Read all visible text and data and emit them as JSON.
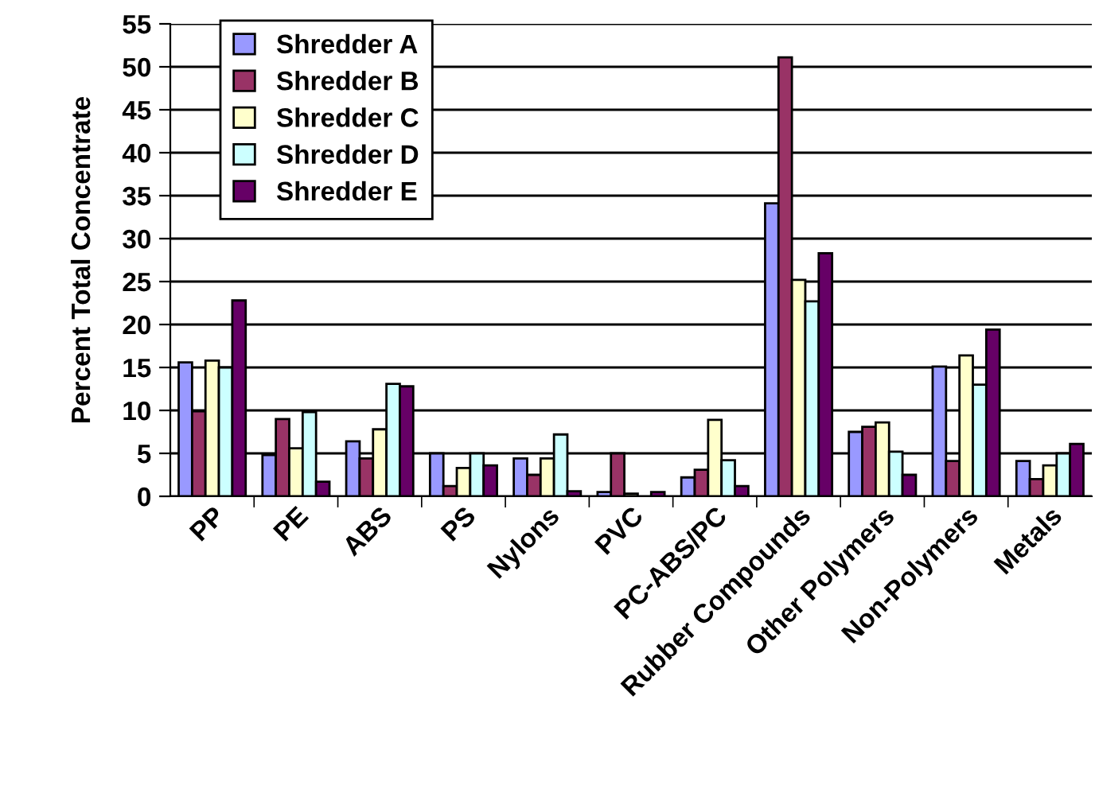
{
  "chart_data": {
    "type": "bar",
    "ylabel": "Percent Total Concentrate",
    "categories": [
      "PP",
      "PE",
      "ABS",
      "PS",
      "Nylons",
      "PVC",
      "PC-ABS/PC",
      "Rubber Compounds",
      "Other Polymers",
      "Non-Polymers",
      "Metals"
    ],
    "series": [
      {
        "name": "Shredder A",
        "color": "#9999ff",
        "values": [
          15.6,
          4.8,
          6.4,
          5.0,
          4.4,
          0.5,
          2.2,
          34.1,
          7.5,
          15.1,
          4.1
        ]
      },
      {
        "name": "Shredder B",
        "color": "#993366",
        "values": [
          9.9,
          9.0,
          4.4,
          1.2,
          2.5,
          5.0,
          3.1,
          51.1,
          8.1,
          4.1,
          2.0
        ]
      },
      {
        "name": "Shredder C",
        "color": "#ffffcc",
        "values": [
          15.8,
          5.6,
          7.8,
          3.3,
          4.4,
          0.3,
          8.9,
          25.2,
          8.6,
          16.4,
          3.6
        ]
      },
      {
        "name": "Shredder D",
        "color": "#ccffff",
        "values": [
          15.0,
          9.8,
          13.1,
          5.0,
          7.2,
          null,
          4.2,
          22.7,
          5.2,
          13.0,
          5.0
        ]
      },
      {
        "name": "Shredder E",
        "color": "#660066",
        "values": [
          22.8,
          1.7,
          12.8,
          3.6,
          0.6,
          0.5,
          1.2,
          28.3,
          2.5,
          19.4,
          6.1
        ]
      }
    ],
    "ylim": [
      0,
      55
    ],
    "yticks": [
      0,
      5,
      10,
      15,
      20,
      25,
      30,
      35,
      40,
      45,
      50,
      55
    ],
    "grid": "y",
    "legend": "top left"
  }
}
